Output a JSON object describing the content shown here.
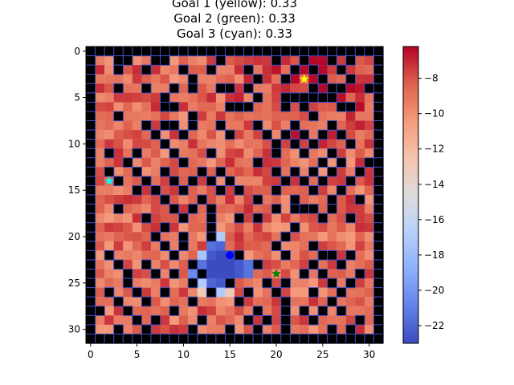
{
  "chart_data": {
    "type": "heatmap",
    "title_lines": [
      "Goal 1 (yellow): 0.33",
      "Goal 2 (green): 0.33",
      "Goal 3 (cyan): 0.33"
    ],
    "grid_size": 32,
    "xlim": [
      -0.5,
      31.5
    ],
    "ylim": [
      31.5,
      -0.5
    ],
    "x_ticks": [
      0,
      5,
      10,
      15,
      20,
      25,
      30
    ],
    "x_tick_labels": [
      "0",
      "5",
      "10",
      "15",
      "20",
      "25",
      "30"
    ],
    "y_ticks": [
      0,
      5,
      10,
      15,
      20,
      25,
      30
    ],
    "y_tick_labels": [
      "0",
      "5",
      "10",
      "15",
      "20",
      "25",
      "30"
    ],
    "colorbar": {
      "colormap": "coolwarm",
      "vmin": -23.0,
      "vmax": -6.2,
      "ticks": [
        -22,
        -20,
        -18,
        -16,
        -14,
        -12,
        -10,
        -8
      ],
      "tick_labels": [
        "−22",
        "−20",
        "−18",
        "−16",
        "−14",
        "−12",
        "−10",
        "−8"
      ]
    },
    "wall_color": "#000000",
    "wall_edge_color": "#4050c8",
    "markers": [
      {
        "name": "Goal 1",
        "shape": "star",
        "color": "#ffff00",
        "x": 23,
        "y": 3
      },
      {
        "name": "Goal 2",
        "shape": "star",
        "color": "#008000",
        "x": 20,
        "y": 24
      },
      {
        "name": "Goal 3",
        "shape": "star",
        "color": "#00ffff",
        "x": 2,
        "y": 14
      },
      {
        "name": "Agent",
        "shape": "circle",
        "color": "#0000ff",
        "x": 15,
        "y": 22
      }
    ],
    "walls": [
      [
        3,
        1
      ],
      [
        4,
        1
      ],
      [
        7,
        1
      ],
      [
        8,
        1
      ],
      [
        14,
        1
      ],
      [
        20,
        1
      ],
      [
        23,
        1
      ],
      [
        26,
        1
      ],
      [
        28,
        1
      ],
      [
        3,
        2
      ],
      [
        6,
        2
      ],
      [
        10,
        2
      ],
      [
        13,
        2
      ],
      [
        17,
        2
      ],
      [
        22,
        2
      ],
      [
        24,
        2
      ],
      [
        27,
        2
      ],
      [
        11,
        3
      ],
      [
        18,
        3
      ],
      [
        21,
        3
      ],
      [
        25,
        3
      ],
      [
        28,
        3
      ],
      [
        3,
        4
      ],
      [
        6,
        4
      ],
      [
        9,
        4
      ],
      [
        11,
        4
      ],
      [
        14,
        4
      ],
      [
        15,
        4
      ],
      [
        17,
        4
      ],
      [
        24,
        4
      ],
      [
        26,
        4
      ],
      [
        27,
        4
      ],
      [
        30,
        4
      ],
      [
        8,
        5
      ],
      [
        18,
        5
      ],
      [
        21,
        5
      ],
      [
        22,
        5
      ],
      [
        23,
        5
      ],
      [
        24,
        5
      ],
      [
        25,
        5
      ],
      [
        26,
        5
      ],
      [
        8,
        6
      ],
      [
        9,
        6
      ],
      [
        15,
        6
      ],
      [
        16,
        6
      ],
      [
        17,
        6
      ],
      [
        21,
        6
      ],
      [
        23,
        6
      ],
      [
        27,
        6
      ],
      [
        28,
        6
      ],
      [
        3,
        7
      ],
      [
        11,
        7
      ],
      [
        24,
        7
      ],
      [
        6,
        8
      ],
      [
        8,
        8
      ],
      [
        9,
        8
      ],
      [
        11,
        8
      ],
      [
        14,
        8
      ],
      [
        18,
        8
      ],
      [
        22,
        8
      ],
      [
        26,
        8
      ],
      [
        7,
        9
      ],
      [
        10,
        9
      ],
      [
        15,
        9
      ],
      [
        19,
        9
      ],
      [
        21,
        9
      ],
      [
        23,
        9
      ],
      [
        25,
        9
      ],
      [
        27,
        9
      ],
      [
        8,
        10
      ],
      [
        20,
        10
      ],
      [
        22,
        10
      ],
      [
        24,
        10
      ],
      [
        28,
        10
      ],
      [
        2,
        11
      ],
      [
        5,
        11
      ],
      [
        9,
        11
      ],
      [
        13,
        11
      ],
      [
        20,
        11
      ],
      [
        23,
        11
      ],
      [
        26,
        11
      ],
      [
        4,
        12
      ],
      [
        10,
        12
      ],
      [
        18,
        12
      ],
      [
        25,
        12
      ],
      [
        27,
        12
      ],
      [
        30,
        12
      ],
      [
        2,
        13
      ],
      [
        5,
        13
      ],
      [
        8,
        13
      ],
      [
        12,
        13
      ],
      [
        14,
        13
      ],
      [
        20,
        13
      ],
      [
        22,
        13
      ],
      [
        24,
        13
      ],
      [
        26,
        13
      ],
      [
        29,
        13
      ],
      [
        3,
        14
      ],
      [
        6,
        14
      ],
      [
        9,
        14
      ],
      [
        11,
        14
      ],
      [
        13,
        14
      ],
      [
        15,
        14
      ],
      [
        21,
        14
      ],
      [
        23,
        14
      ],
      [
        25,
        14
      ],
      [
        28,
        14
      ],
      [
        5,
        15
      ],
      [
        7,
        15
      ],
      [
        10,
        15
      ],
      [
        14,
        15
      ],
      [
        16,
        15
      ],
      [
        20,
        15
      ],
      [
        24,
        15
      ],
      [
        27,
        15
      ],
      [
        8,
        16
      ],
      [
        12,
        16
      ],
      [
        18,
        16
      ],
      [
        22,
        16
      ],
      [
        26,
        16
      ],
      [
        29,
        16
      ],
      [
        3,
        17
      ],
      [
        9,
        17
      ],
      [
        11,
        17
      ],
      [
        13,
        17
      ],
      [
        20,
        17
      ],
      [
        22,
        17
      ],
      [
        23,
        17
      ],
      [
        24,
        17
      ],
      [
        26,
        17
      ],
      [
        6,
        18
      ],
      [
        10,
        18
      ],
      [
        13,
        18
      ],
      [
        16,
        18
      ],
      [
        18,
        18
      ],
      [
        25,
        18
      ],
      [
        28,
        18
      ],
      [
        8,
        19
      ],
      [
        13,
        19
      ],
      [
        22,
        19
      ],
      [
        7,
        20
      ],
      [
        10,
        20
      ],
      [
        13,
        20
      ],
      [
        21,
        20
      ],
      [
        8,
        21
      ],
      [
        10,
        21
      ],
      [
        20,
        21
      ],
      [
        24,
        21
      ],
      [
        2,
        22
      ],
      [
        9,
        22
      ],
      [
        16,
        22
      ],
      [
        21,
        22
      ],
      [
        25,
        22
      ],
      [
        26,
        22
      ],
      [
        28,
        22
      ],
      [
        3,
        23
      ],
      [
        6,
        23
      ],
      [
        11,
        23
      ],
      [
        18,
        23
      ],
      [
        24,
        23
      ],
      [
        27,
        23
      ],
      [
        4,
        24
      ],
      [
        7,
        24
      ],
      [
        9,
        24
      ],
      [
        12,
        24
      ],
      [
        23,
        24
      ],
      [
        25,
        24
      ],
      [
        29,
        24
      ],
      [
        4,
        25
      ],
      [
        11,
        25
      ],
      [
        15,
        25
      ],
      [
        19,
        25
      ],
      [
        21,
        25
      ],
      [
        26,
        25
      ],
      [
        28,
        25
      ],
      [
        2,
        26
      ],
      [
        5,
        26
      ],
      [
        8,
        26
      ],
      [
        13,
        26
      ],
      [
        17,
        26
      ],
      [
        20,
        26
      ],
      [
        24,
        26
      ],
      [
        27,
        26
      ],
      [
        3,
        27
      ],
      [
        6,
        27
      ],
      [
        11,
        27
      ],
      [
        16,
        27
      ],
      [
        21,
        27
      ],
      [
        26,
        27
      ],
      [
        1,
        28
      ],
      [
        4,
        28
      ],
      [
        9,
        28
      ],
      [
        18,
        28
      ],
      [
        21,
        28
      ],
      [
        23,
        28
      ],
      [
        25,
        28
      ],
      [
        27,
        28
      ],
      [
        5,
        29
      ],
      [
        7,
        29
      ],
      [
        12,
        29
      ],
      [
        17,
        29
      ],
      [
        19,
        29
      ],
      [
        21,
        29
      ],
      [
        24,
        29
      ],
      [
        29,
        29
      ],
      [
        3,
        30
      ],
      [
        6,
        30
      ],
      [
        11,
        30
      ],
      [
        15,
        30
      ],
      [
        18,
        30
      ],
      [
        21,
        30
      ],
      [
        26,
        30
      ],
      [
        28,
        30
      ]
    ],
    "low_value_region": [
      {
        "x": 13,
        "y": 19,
        "value": -19.5
      },
      {
        "x": 13,
        "y": 20,
        "value": -20.5
      },
      {
        "x": 13,
        "y": 21,
        "value": -21.5
      },
      {
        "x": 14,
        "y": 21,
        "value": -22.0
      },
      {
        "x": 13,
        "y": 22,
        "value": -22.5
      },
      {
        "x": 14,
        "y": 22,
        "value": -23.0
      },
      {
        "x": 15,
        "y": 22,
        "value": -23.0
      },
      {
        "x": 16,
        "y": 22,
        "value": -22.0
      },
      {
        "x": 12,
        "y": 23,
        "value": -21.5
      },
      {
        "x": 13,
        "y": 23,
        "value": -23.0
      },
      {
        "x": 14,
        "y": 23,
        "value": -23.0
      },
      {
        "x": 15,
        "y": 23,
        "value": -23.0
      },
      {
        "x": 16,
        "y": 23,
        "value": -22.5
      },
      {
        "x": 17,
        "y": 23,
        "value": -21.5
      },
      {
        "x": 11,
        "y": 24,
        "value": -20.5
      },
      {
        "x": 12,
        "y": 24,
        "value": -22.5
      },
      {
        "x": 13,
        "y": 24,
        "value": -23.0
      },
      {
        "x": 14,
        "y": 24,
        "value": -23.0
      },
      {
        "x": 15,
        "y": 24,
        "value": -23.0
      },
      {
        "x": 16,
        "y": 24,
        "value": -22.5
      },
      {
        "x": 17,
        "y": 24,
        "value": -21.5
      },
      {
        "x": 13,
        "y": 25,
        "value": -22.0
      },
      {
        "x": 14,
        "y": 25,
        "value": -22.5
      },
      {
        "x": 12,
        "y": 25,
        "value": -17.0
      },
      {
        "x": 12,
        "y": 22,
        "value": -17.5
      },
      {
        "x": 14,
        "y": 20,
        "value": -17.0
      },
      {
        "x": 14,
        "y": 26,
        "value": -17.0
      },
      {
        "x": 12,
        "y": 26,
        "value": -13.0
      },
      {
        "x": 15,
        "y": 26,
        "value": -13.0
      }
    ],
    "base_value_range": [
      -12.5,
      -6.5
    ],
    "base_value_peak": {
      "x": 24,
      "y": 3,
      "value": -6.3
    }
  }
}
